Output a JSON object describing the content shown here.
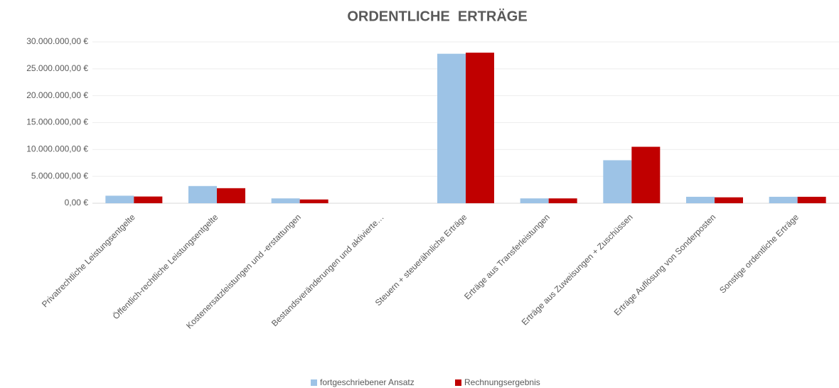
{
  "chart_data": {
    "type": "bar",
    "title": "ORDENTLICHE  ERTRÄGE",
    "categories": [
      "Privatrechtliche Leistungsentgelte",
      "Öffentlich-rechtliche Leistungsentgelte",
      "Kostenersatzleistungen und -erstattungen",
      "Bestandsveränderungen und aktivierte…",
      "Steuern + steuerähnliche Erträge",
      "Erträge aus Transferleistungen",
      "Erträge aus Zuweisungen + Zuschüssen",
      "Erträge Auflösung von Sonderposten",
      "Sonstige ordentliche Erträge"
    ],
    "series": [
      {
        "name": "fortgeschriebener Ansatz",
        "color": "#9dc3e6",
        "values": [
          1400000,
          3200000,
          900000,
          0,
          27800000,
          900000,
          8000000,
          1200000,
          1200000
        ]
      },
      {
        "name": "Rechnungsergebnis",
        "color": "#c00000",
        "values": [
          1250000,
          2800000,
          700000,
          0,
          28000000,
          900000,
          10500000,
          1100000,
          1200000
        ]
      }
    ],
    "ylim": [
      0,
      30000000
    ],
    "yticks": [
      {
        "value": 0,
        "label": "0,00 €"
      },
      {
        "value": 5000000,
        "label": "5.000.000,00 €"
      },
      {
        "value": 10000000,
        "label": "10.000.000,00 €"
      },
      {
        "value": 15000000,
        "label": "15.000.000,00 €"
      },
      {
        "value": 20000000,
        "label": "20.000.000,00 €"
      },
      {
        "value": 25000000,
        "label": "25.000.000,00 €"
      },
      {
        "value": 30000000,
        "label": "30.000.000,00 €"
      }
    ],
    "grid": true,
    "legend": "bottom"
  }
}
